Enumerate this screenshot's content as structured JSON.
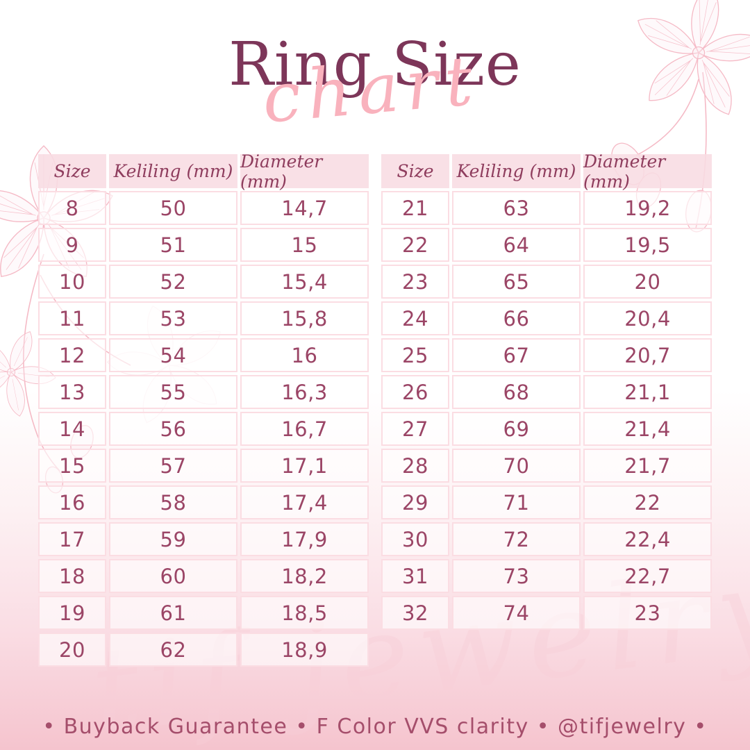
{
  "page": {
    "title_main": "Ring Size",
    "title_script": "chart",
    "footer": "• Buyback Guarantee • F Color VVS clarity • @tifjewelry •",
    "watermark": "tif jewelry"
  },
  "tables": [
    {
      "headers": [
        "Size",
        "Keliling (mm)",
        "Diameter (mm)"
      ],
      "rows": [
        [
          "8",
          "50",
          "14,7"
        ],
        [
          "9",
          "51",
          "15"
        ],
        [
          "10",
          "52",
          "15,4"
        ],
        [
          "11",
          "53",
          "15,8"
        ],
        [
          "12",
          "54",
          "16"
        ],
        [
          "13",
          "55",
          "16,3"
        ],
        [
          "14",
          "56",
          "16,7"
        ],
        [
          "15",
          "57",
          "17,1"
        ],
        [
          "16",
          "58",
          "17,4"
        ],
        [
          "17",
          "59",
          "17,9"
        ],
        [
          "18",
          "60",
          "18,2"
        ],
        [
          "19",
          "61",
          "18,5"
        ],
        [
          "20",
          "62",
          "18,9"
        ]
      ]
    },
    {
      "headers": [
        "Size",
        "Keliling (mm)",
        "Diameter (mm)"
      ],
      "rows": [
        [
          "21",
          "63",
          "19,2"
        ],
        [
          "22",
          "64",
          "19,5"
        ],
        [
          "23",
          "65",
          "20"
        ],
        [
          "24",
          "66",
          "20,4"
        ],
        [
          "25",
          "67",
          "20,7"
        ],
        [
          "26",
          "68",
          "21,1"
        ],
        [
          "27",
          "69",
          "21,4"
        ],
        [
          "28",
          "70",
          "21,7"
        ],
        [
          "29",
          "71",
          "22"
        ],
        [
          "30",
          "72",
          "22,4"
        ],
        [
          "31",
          "73",
          "22,7"
        ],
        [
          "32",
          "74",
          "23"
        ]
      ]
    }
  ],
  "chart_data": [
    {
      "type": "table",
      "title": "Ring Size Chart (sizes 8-20)",
      "columns": [
        "Size",
        "Keliling (mm)",
        "Diameter (mm)"
      ],
      "rows": [
        [
          8,
          50,
          14.7
        ],
        [
          9,
          51,
          15
        ],
        [
          10,
          52,
          15.4
        ],
        [
          11,
          53,
          15.8
        ],
        [
          12,
          54,
          16
        ],
        [
          13,
          55,
          16.3
        ],
        [
          14,
          56,
          16.7
        ],
        [
          15,
          57,
          17.1
        ],
        [
          16,
          58,
          17.4
        ],
        [
          17,
          59,
          17.9
        ],
        [
          18,
          60,
          18.2
        ],
        [
          19,
          61,
          18.5
        ],
        [
          20,
          62,
          18.9
        ]
      ]
    },
    {
      "type": "table",
      "title": "Ring Size Chart (sizes 21-32)",
      "columns": [
        "Size",
        "Keliling (mm)",
        "Diameter (mm)"
      ],
      "rows": [
        [
          21,
          63,
          19.2
        ],
        [
          22,
          64,
          19.5
        ],
        [
          23,
          65,
          20
        ],
        [
          24,
          66,
          20.4
        ],
        [
          25,
          67,
          20.7
        ],
        [
          26,
          68,
          21.1
        ],
        [
          27,
          69,
          21.4
        ],
        [
          28,
          70,
          21.7
        ],
        [
          29,
          71,
          22
        ],
        [
          30,
          72,
          22.4
        ],
        [
          31,
          73,
          22.7
        ],
        [
          32,
          74,
          23
        ]
      ]
    }
  ],
  "colors": {
    "title_plum": "#7d3659",
    "script_pink": "#f9b2bd",
    "header_bg": "#f8dce3",
    "cell_border": "#fbdde3",
    "cell_text": "#9b4566",
    "footer_text": "#a54e6b",
    "decor_stroke": "#f4b3c0",
    "bottom_gradient_pink": "#f5c4ce"
  }
}
